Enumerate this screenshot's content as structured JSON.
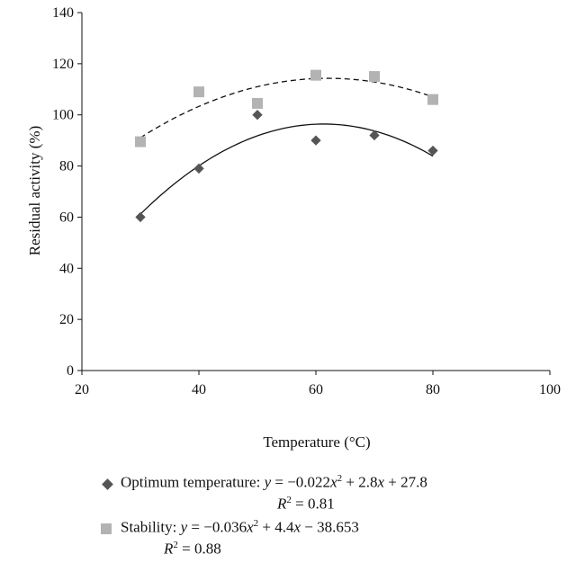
{
  "chart_data": {
    "type": "scatter",
    "title": "",
    "xlabel": "Temperature (°C)",
    "ylabel": "Residual activity (%)",
    "xlim": [
      20,
      100
    ],
    "ylim": [
      0,
      140
    ],
    "x_ticks": [
      "20",
      "40",
      "60",
      "80",
      "100"
    ],
    "y_ticks": [
      "0",
      "20",
      "40",
      "60",
      "80",
      "100",
      "120",
      "140"
    ],
    "grid": false,
    "legend_position": "bottom",
    "series": [
      {
        "name": "Optimum temperature",
        "marker": "diamond",
        "color": "#555555",
        "x": [
          30,
          40,
          50,
          60,
          70,
          80
        ],
        "y": [
          60,
          79,
          100,
          90,
          92,
          86
        ],
        "trendline": {
          "style": "solid",
          "equation": "y = −0.022x² + 2.8x + 27.8",
          "r2": "R² = 0.81"
        }
      },
      {
        "name": "Stability",
        "marker": "square",
        "color": "#b3b3b3",
        "x": [
          30,
          40,
          50,
          60,
          70,
          80
        ],
        "y": [
          89.5,
          109,
          104.5,
          115.5,
          115,
          106
        ],
        "trendline": {
          "style": "dashed",
          "equation": "y = −0.036x² + 4.4x − 38.653",
          "r2": "R² = 0.88"
        }
      }
    ]
  },
  "legend": {
    "optimum": {
      "label": "Optimum temperature:",
      "eq_y": "y",
      "eq_mid": " = −0.022",
      "eq_x1": "x",
      "eq_sup": "2",
      "eq_rest": " + 2.8",
      "eq_x2": "x",
      "eq_tail": " + 27.8",
      "r2_R": "R",
      "r2_sup": "2",
      "r2_val": " = 0.81"
    },
    "stability": {
      "label": "Stability:",
      "eq_y": "y",
      "eq_mid": " = −0.036",
      "eq_x1": "x",
      "eq_sup": "2",
      "eq_rest": " + 4.4",
      "eq_x2": "x",
      "eq_tail": " − 38.653",
      "r2_R": "R",
      "r2_sup": "2",
      "r2_val": " = 0.88"
    }
  }
}
